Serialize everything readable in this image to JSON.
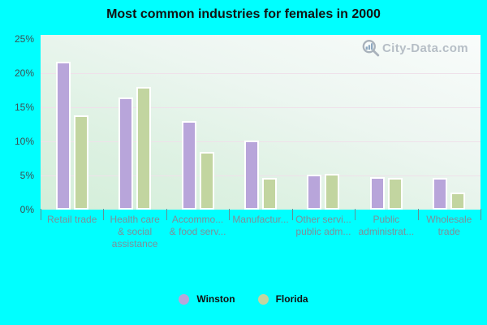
{
  "title": "Most common industries for females in 2000",
  "watermark": {
    "text": "City-Data.com",
    "icon": "magnifier-with-bars"
  },
  "colors": {
    "page_background": "#00ffff",
    "plot_gradient_top": "#f9fcfb",
    "plot_gradient_bottom": "#d3eed9",
    "gridline": "#efe1ea",
    "axis_tick": "#649094",
    "winston_bar": "#b8a5da",
    "florida_bar": "#c2d5a0",
    "bar_border": "#ffffff",
    "x_label_text": "#7d8f99",
    "y_label_text": "#3d5054",
    "watermark_text": "#b6bec6"
  },
  "chart_data": {
    "type": "bar",
    "title": "Most common industries for females in 2000",
    "categories": [
      "Retail trade",
      "Health care\n& social\nassistance",
      "Accommo...\n& food serv...",
      "Manufactur...",
      "Other servi...\npublic adm...",
      "Public\nadministrat...",
      "Wholesale\ntrade"
    ],
    "series": [
      {
        "name": "Winston",
        "color": "#b8a5da",
        "values": [
          21.7,
          16.4,
          13.0,
          10.1,
          5.1,
          4.8,
          4.6
        ]
      },
      {
        "name": "Florida",
        "color": "#c2d5a0",
        "values": [
          13.8,
          18.0,
          8.4,
          4.7,
          5.2,
          4.7,
          2.5
        ]
      }
    ],
    "xlabel": "",
    "ylabel": "",
    "ylim": [
      0,
      25
    ],
    "y_ticks": [
      {
        "value": 0,
        "label": "0%"
      },
      {
        "value": 5,
        "label": "5%"
      },
      {
        "value": 10,
        "label": "10%"
      },
      {
        "value": 15,
        "label": "15%"
      },
      {
        "value": 20,
        "label": "20%"
      },
      {
        "value": 25,
        "label": "25%"
      }
    ],
    "grid": true,
    "legend_position": "bottom"
  }
}
